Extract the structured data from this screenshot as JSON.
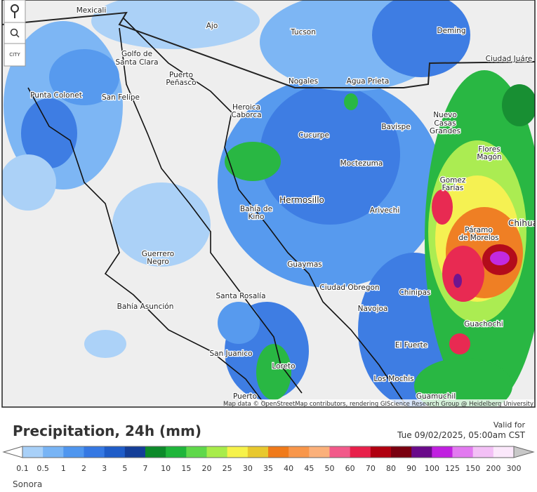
{
  "controls": {
    "city_label": "CITY"
  },
  "map": {
    "cities": [
      "Mexicali",
      "Ajo",
      "Tucson",
      "Deming",
      "Ciudad Juáre",
      "Golfo de",
      "Santa Clara",
      "Puerto",
      "Peñasco",
      "Nogales",
      "Agua Prieta",
      "Punta Colonet",
      "San Felipe",
      "Heroica",
      "Caborca",
      "Nuevo",
      "Casas",
      "Grandes",
      "Cucurpe",
      "Bavispe",
      "Flores",
      "Magón",
      "Moctezuma",
      "Gomez",
      "Farías",
      "Hermosillo",
      "Bahía de",
      "Kino",
      "Arivechi",
      "Chihua",
      "Páramo",
      "de Morelos",
      "Guerrero",
      "Negro",
      "Guaymas",
      "Santa Rosalía",
      "Ciudad Obregon",
      "Chinipas",
      "Bahía Asunción",
      "Navojoa",
      "Guachochi",
      "El Fuerte",
      "San Juanico",
      "Loreto",
      "Los Mochis",
      "Puerto",
      "Guamuchil"
    ],
    "attribution": "Map data © OpenStreetMap contributors, rendering GIScience Research Group @ Heidelberg University"
  },
  "legend": {
    "title": "Precipitation, 24h (mm)",
    "valid_label": "Valid for",
    "valid_time": "Tue 09/02/2025, 05:00am CST",
    "ticks": [
      "0.1",
      "0.5",
      "1",
      "2",
      "3",
      "5",
      "7",
      "10",
      "15",
      "20",
      "25",
      "30",
      "35",
      "40",
      "45",
      "50",
      "60",
      "70",
      "80",
      "90",
      "100",
      "125",
      "150",
      "200",
      "300"
    ],
    "colors": [
      "#a8d0f8",
      "#78b4f5",
      "#4f96ef",
      "#3578e3",
      "#1f5cc8",
      "#143e98",
      "#0d8a2a",
      "#1fb53a",
      "#5fd84a",
      "#a8ec4a",
      "#f6f24a",
      "#e8c82e",
      "#f07a1a",
      "#f8964a",
      "#fbb07a",
      "#f25a8a",
      "#e8204a",
      "#b00010",
      "#7a0010",
      "#6a0a8a",
      "#c020e0",
      "#e27af0",
      "#f3c0f6",
      "#fbe8fb"
    ],
    "low_color": "#ffffff",
    "high_color": "#c8c8c8"
  },
  "region": "Sonora"
}
